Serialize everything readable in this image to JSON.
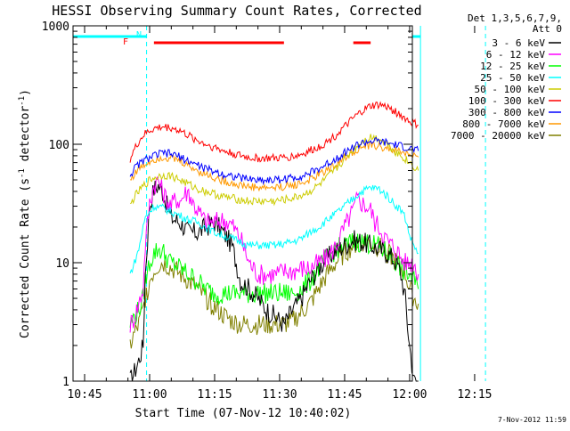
{
  "chart_data": {
    "type": "line",
    "title": "HESSI Observing Summary Count Rates, Corrected",
    "xlabel": "Start Time (07-Nov-12 10:40:02)",
    "ylabel_main": "Corrected Count Rate (s",
    "ylabel_sup1": "-1",
    "ylabel_mid": " detector",
    "ylabel_sup2": "-1",
    "ylabel_end": ")",
    "yscale": "log",
    "ylim": [
      1,
      1000
    ],
    "xlim_minutes": [
      -4.5,
      97
    ],
    "x_unit": "minutes since 10:45",
    "xticks": [
      {
        "m": 0,
        "label": "10:45"
      },
      {
        "m": 15,
        "label": "11:00"
      },
      {
        "m": 30,
        "label": "11:15"
      },
      {
        "m": 45,
        "label": "11:30"
      },
      {
        "m": 60,
        "label": "11:45"
      },
      {
        "m": 75,
        "label": "12:00"
      },
      {
        "m": 90,
        "label": "12:15"
      }
    ],
    "yticks": [
      {
        "v": 1,
        "label": "1"
      },
      {
        "v": 10,
        "label": "10"
      },
      {
        "v": 100,
        "label": "100"
      },
      {
        "v": 1000,
        "label": "1000"
      }
    ],
    "legend_header": [
      "Det 1,3,5,6,7,9,",
      "Att 0"
    ],
    "legend_placement": "right",
    "timestamp": "7-Nov-2012 11:59",
    "flag_labels": {
      "flare": "F",
      "night": "N"
    },
    "series": [
      {
        "name": "3 - 6 keV",
        "color": "#000000",
        "x": [
          10.5,
          11.5,
          12.5,
          13.5,
          14,
          15,
          16,
          17,
          18,
          19,
          20,
          22,
          24,
          26,
          28,
          30,
          32,
          33,
          34,
          35,
          36,
          38,
          40,
          42,
          44,
          46,
          48,
          50,
          52,
          54,
          56,
          58,
          60,
          62,
          64,
          66,
          68,
          70,
          72,
          73,
          74,
          74.5,
          75,
          76,
          77
        ],
        "y": [
          1,
          1.2,
          1.5,
          2,
          8,
          30,
          42,
          45,
          40,
          30,
          24,
          22,
          18,
          18,
          20,
          22,
          18,
          16,
          14,
          10,
          7,
          6,
          5,
          4,
          3.5,
          3,
          4,
          5,
          7,
          9,
          11,
          12.5,
          14,
          15.5,
          15,
          14,
          13,
          12,
          10,
          8,
          5,
          3,
          2,
          1,
          1
        ]
      },
      {
        "name": "6 - 12 keV",
        "color": "#ff00ff",
        "x": [
          10.5,
          11.5,
          12.5,
          13.5,
          14,
          15,
          16,
          17,
          18,
          19,
          20,
          21,
          22,
          23,
          24,
          25,
          26,
          28,
          30,
          32,
          34,
          36,
          38,
          40,
          42,
          44,
          46,
          48,
          50,
          52,
          54,
          56,
          58,
          60,
          62,
          63,
          64,
          65,
          66,
          67,
          68,
          70,
          72,
          73,
          74,
          74.5,
          75,
          76,
          77
        ],
        "y": [
          3,
          3.5,
          4.5,
          6,
          14,
          32,
          45,
          50,
          40,
          34,
          30,
          35,
          33,
          38,
          40,
          32,
          28,
          22,
          22,
          23,
          21,
          16,
          10,
          8,
          8,
          8,
          8.5,
          8.5,
          9,
          9,
          10,
          11,
          14,
          20,
          28,
          35,
          32,
          30,
          28,
          22,
          20,
          15,
          13,
          11,
          10,
          10,
          10,
          10,
          8
        ]
      },
      {
        "name": "12 - 25 keV",
        "color": "#00ff00",
        "x": [
          10.5,
          11.5,
          12.5,
          13.5,
          14,
          15,
          16,
          17,
          18,
          19,
          20,
          22,
          24,
          26,
          28,
          30,
          32,
          34,
          36,
          38,
          40,
          42,
          44,
          46,
          48,
          50,
          52,
          54,
          56,
          58,
          60,
          62,
          64,
          66,
          68,
          70,
          72,
          73,
          74,
          74.5,
          75,
          76,
          77
        ],
        "y": [
          3,
          3.5,
          4,
          5,
          7,
          10,
          12,
          13,
          12.5,
          11,
          10,
          9,
          8,
          7,
          6,
          5.5,
          5.5,
          5.5,
          5.5,
          5.5,
          5.5,
          5.5,
          5.5,
          5.5,
          5.5,
          6,
          7,
          9,
          11,
          13,
          14,
          15,
          15,
          14.5,
          13.5,
          12,
          10,
          9,
          8,
          8,
          8,
          7,
          6
        ]
      },
      {
        "name": "25 - 50 keV",
        "color": "#00ffff",
        "x": [
          10.5,
          11.5,
          12.5,
          13.5,
          14,
          15,
          16,
          18,
          20,
          22,
          24,
          26,
          28,
          30,
          32,
          34,
          36,
          38,
          40,
          42,
          44,
          46,
          48,
          50,
          52,
          54,
          56,
          58,
          60,
          62,
          64,
          66,
          68,
          70,
          72,
          73,
          74,
          74.5,
          75,
          76,
          77
        ],
        "y": [
          8,
          10,
          13,
          20,
          24,
          27,
          30,
          29,
          27,
          25,
          23,
          22,
          20,
          18,
          17,
          16,
          15,
          14,
          14,
          14,
          14,
          14.5,
          15,
          16,
          18,
          20,
          23,
          26,
          30,
          35,
          40,
          43,
          42,
          36,
          30,
          28,
          24,
          20,
          17,
          14,
          12
        ]
      },
      {
        "name": "50 - 100 keV",
        "color": "#cccc00",
        "x": [
          10.5,
          11.5,
          12.5,
          13.5,
          14,
          15,
          16,
          18,
          20,
          22,
          24,
          26,
          28,
          30,
          32,
          34,
          36,
          38,
          40,
          42,
          44,
          46,
          48,
          50,
          52,
          54,
          56,
          58,
          60,
          62,
          64,
          66,
          68,
          70,
          72,
          73,
          74,
          74.5,
          75,
          76,
          77
        ],
        "y": [
          30,
          36,
          40,
          44,
          46,
          50,
          52,
          55,
          54,
          50,
          46,
          42,
          40,
          38,
          36,
          35,
          34,
          33,
          33,
          33,
          33,
          34,
          35,
          37,
          40,
          45,
          52,
          62,
          75,
          90,
          105,
          115,
          112,
          100,
          85,
          80,
          75,
          72,
          70,
          65,
          60
        ]
      },
      {
        "name": "100 - 300 keV",
        "color": "#ff0000",
        "x": [
          10.5,
          11.5,
          12.5,
          13.5,
          14,
          15,
          16,
          18,
          20,
          22,
          24,
          26,
          28,
          30,
          32,
          34,
          36,
          38,
          40,
          42,
          44,
          46,
          48,
          50,
          52,
          54,
          56,
          58,
          60,
          62,
          64,
          66,
          68,
          70,
          72,
          73,
          74,
          74.5,
          75,
          76,
          77
        ],
        "y": [
          75,
          90,
          105,
          118,
          122,
          130,
          135,
          140,
          138,
          130,
          118,
          108,
          100,
          94,
          88,
          84,
          80,
          77,
          76,
          76,
          76,
          77,
          79,
          82,
          88,
          95,
          105,
          120,
          140,
          165,
          190,
          210,
          215,
          205,
          185,
          175,
          165,
          160,
          155,
          150,
          145
        ]
      },
      {
        "name": "300 - 800 keV",
        "color": "#0000ff",
        "x": [
          10.5,
          11.5,
          12.5,
          13.5,
          14,
          15,
          16,
          18,
          20,
          22,
          24,
          26,
          28,
          30,
          32,
          34,
          36,
          38,
          40,
          42,
          44,
          46,
          48,
          50,
          52,
          54,
          56,
          58,
          60,
          62,
          64,
          66,
          68,
          70,
          72,
          73,
          74,
          74.5,
          75,
          76,
          77
        ],
        "y": [
          55,
          62,
          68,
          72,
          74,
          77,
          80,
          84,
          83,
          78,
          72,
          67,
          62,
          59,
          56,
          54,
          52,
          51,
          50,
          50,
          50,
          51,
          52,
          54,
          57,
          62,
          68,
          76,
          85,
          95,
          102,
          106,
          105,
          102,
          98,
          96,
          94,
          93,
          92,
          90,
          88
        ]
      },
      {
        "name": "800 - 7000 keV",
        "color": "#ff9900",
        "x": [
          10.5,
          11.5,
          12.5,
          13.5,
          14,
          15,
          16,
          18,
          20,
          22,
          24,
          26,
          28,
          30,
          32,
          34,
          36,
          38,
          40,
          42,
          44,
          46,
          48,
          50,
          52,
          54,
          56,
          58,
          60,
          62,
          64,
          66,
          68,
          70,
          72,
          73,
          74,
          74.5,
          75,
          76,
          77
        ],
        "y": [
          50,
          56,
          62,
          66,
          68,
          72,
          75,
          78,
          76,
          72,
          66,
          60,
          56,
          52,
          49,
          47,
          45,
          44,
          43,
          43,
          43,
          44,
          45,
          47,
          50,
          55,
          61,
          68,
          77,
          87,
          94,
          98,
          96,
          92,
          88,
          86,
          84,
          83,
          82,
          80,
          78
        ]
      },
      {
        "name": "7000 - 20000 keV",
        "color": "#808000",
        "x": [
          10.5,
          11.5,
          12.5,
          13.5,
          14,
          15,
          16,
          17,
          18,
          19,
          20,
          22,
          24,
          26,
          28,
          30,
          32,
          34,
          36,
          38,
          40,
          42,
          44,
          46,
          48,
          50,
          52,
          54,
          56,
          58,
          60,
          62,
          64,
          66,
          68,
          70,
          72,
          73,
          74,
          74.5,
          75,
          76,
          77
        ],
        "y": [
          2,
          2.5,
          3,
          4,
          5,
          7,
          8.5,
          9.5,
          10,
          9.5,
          9,
          8,
          7,
          6,
          5,
          4.2,
          3.6,
          3.2,
          3,
          3,
          3,
          3,
          3,
          3,
          3.2,
          3.8,
          4.5,
          6,
          8,
          10,
          12,
          14,
          15,
          14.5,
          13.5,
          12,
          10,
          9,
          8,
          7,
          6,
          5,
          4.5
        ]
      }
    ],
    "orbit_flags": [
      {
        "kind": "cyan",
        "x0": -4.5,
        "x1": 14.3
      },
      {
        "kind": "cyan",
        "x0": 77.5,
        "x1": 97
      }
    ],
    "flare_flags": [
      {
        "kind": "red",
        "x0": 16,
        "x1": 46
      },
      {
        "kind": "red",
        "x0": 62,
        "x1": 66
      }
    ],
    "vlines": [
      {
        "m": 14.3,
        "style": "dashed"
      },
      {
        "m": 77.5,
        "style": "solid"
      },
      {
        "m": 92.5,
        "style": "dashed"
      }
    ]
  }
}
